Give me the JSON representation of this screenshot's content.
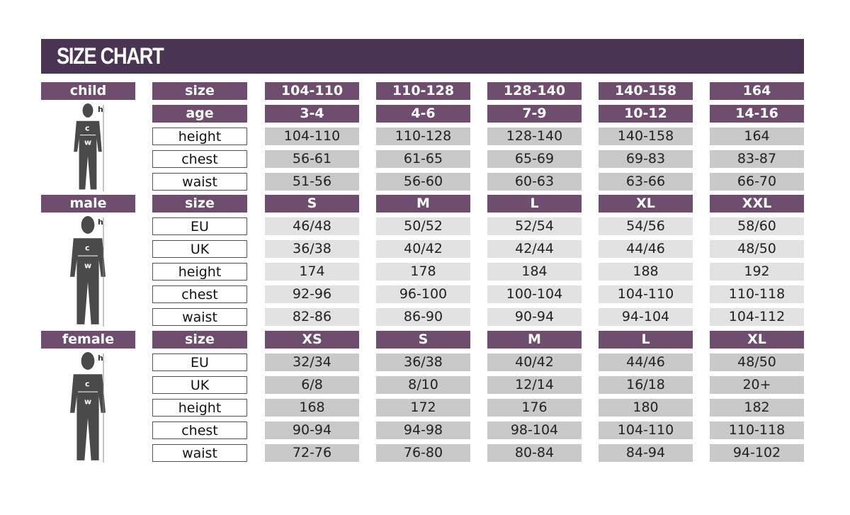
{
  "title": "SIZE CHART",
  "colors": {
    "title_bg": "#4a3454",
    "header_bg": "#6e4d6e",
    "cell_gray": "#c9c9c9",
    "cell_light": "#e2e2e2"
  },
  "sections": [
    {
      "name": "child",
      "figure_labels": [
        "h",
        "c",
        "w"
      ],
      "rows": [
        {
          "label": "size",
          "header": true,
          "values": [
            "104-110",
            "110-128",
            "128-140",
            "140-158",
            "164"
          ]
        },
        {
          "label": "age",
          "header": true,
          "values": [
            "3-4",
            "4-6",
            "7-9",
            "10-12",
            "14-16"
          ]
        },
        {
          "label": "height",
          "values": [
            "104-110",
            "110-128",
            "128-140",
            "140-158",
            "164"
          ]
        },
        {
          "label": "chest",
          "values": [
            "56-61",
            "61-65",
            "65-69",
            "69-83",
            "83-87"
          ]
        },
        {
          "label": "waist",
          "values": [
            "51-56",
            "56-60",
            "60-63",
            "63-66",
            "66-70"
          ]
        }
      ]
    },
    {
      "name": "male",
      "figure_labels": [
        "h",
        "c",
        "w"
      ],
      "rows": [
        {
          "label": "size",
          "header": true,
          "values": [
            "S",
            "M",
            "L",
            "XL",
            "XXL"
          ]
        },
        {
          "label": "EU",
          "values": [
            "46/48",
            "50/52",
            "52/54",
            "54/56",
            "58/60"
          ]
        },
        {
          "label": "UK",
          "values": [
            "36/38",
            "40/42",
            "42/44",
            "44/46",
            "48/50"
          ]
        },
        {
          "label": "height",
          "values": [
            "174",
            "178",
            "184",
            "188",
            "192"
          ]
        },
        {
          "label": "chest",
          "values": [
            "92-96",
            "96-100",
            "100-104",
            "104-110",
            "110-118"
          ]
        },
        {
          "label": "waist",
          "values": [
            "82-86",
            "86-90",
            "90-94",
            "94-104",
            "104-112"
          ]
        }
      ]
    },
    {
      "name": "female",
      "figure_labels": [
        "h",
        "c",
        "w"
      ],
      "rows": [
        {
          "label": "size",
          "header": true,
          "values": [
            "XS",
            "S",
            "M",
            "L",
            "XL"
          ]
        },
        {
          "label": "EU",
          "values": [
            "32/34",
            "36/38",
            "40/42",
            "44/46",
            "48/50"
          ]
        },
        {
          "label": "UK",
          "values": [
            "6/8",
            "8/10",
            "12/14",
            "16/18",
            "20+"
          ]
        },
        {
          "label": "height",
          "values": [
            "168",
            "172",
            "176",
            "180",
            "182"
          ]
        },
        {
          "label": "chest",
          "values": [
            "90-94",
            "94-98",
            "98-104",
            "104-110",
            "110-118"
          ]
        },
        {
          "label": "waist",
          "values": [
            "72-76",
            "76-80",
            "80-84",
            "84-94",
            "94-102"
          ]
        }
      ]
    }
  ]
}
